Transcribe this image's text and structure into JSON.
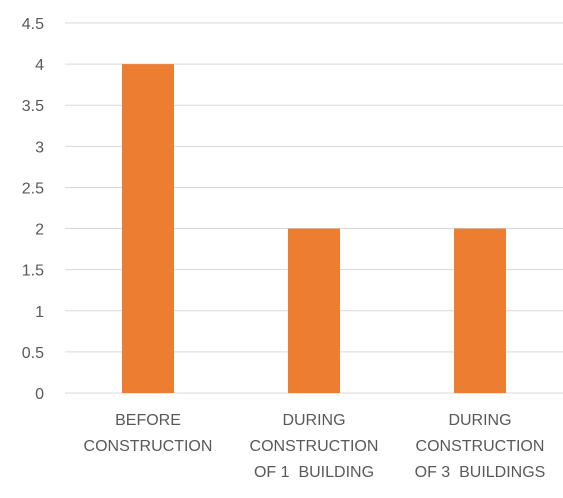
{
  "chart_data": {
    "type": "bar",
    "categories": [
      [
        "BEFORE",
        "CONSTRUCTION"
      ],
      [
        "DURING",
        "CONSTRUCTION",
        "OF 1  BUILDING"
      ],
      [
        "DURING",
        "CONSTRUCTION",
        "OF 3  BUILDINGS"
      ]
    ],
    "values": [
      4,
      2,
      2
    ],
    "yticks": [
      "0",
      "0.5",
      "1",
      "1.5",
      "2",
      "2.5",
      "3",
      "3.5",
      "4",
      "4.5"
    ],
    "ylim": [
      0,
      4.5
    ],
    "grid": true,
    "legend": "none",
    "title": "",
    "xlabel": "",
    "ylabel": "",
    "colors": {
      "bar": "#ED7D31",
      "grid": "#D9D9D9",
      "text": "#595959"
    }
  }
}
